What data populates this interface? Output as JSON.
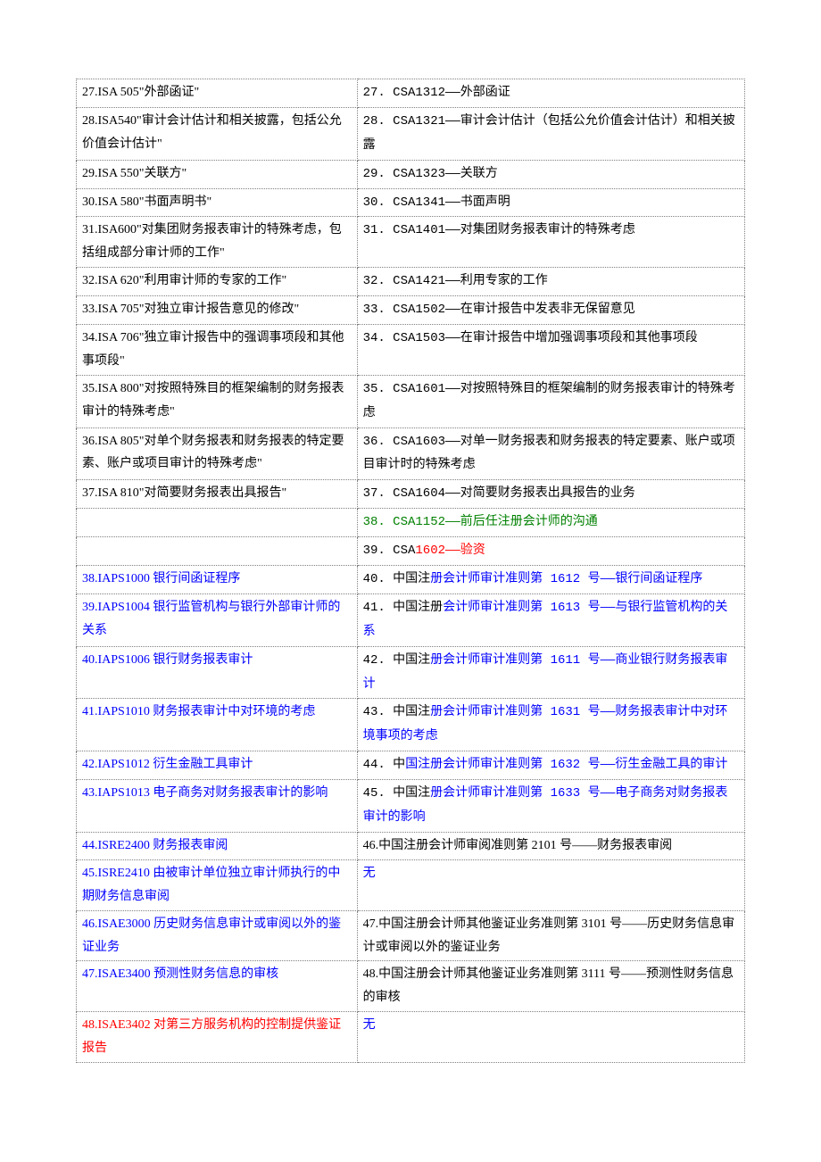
{
  "table": {
    "rows": [
      {
        "left": [
          {
            "t": "27.ISA 505\"外部函证\""
          }
        ],
        "right": [
          {
            "t": "27. CSA1312——外部函证",
            "cls": "tt"
          }
        ]
      },
      {
        "left": [
          {
            "t": "28.ISA540\"审计会计估计和相关披露，包括公允价值会计估计\""
          }
        ],
        "right": [
          {
            "t": "28. CSA1321——审计会计估计（包括公允价值会计估计）和相关披露",
            "cls": "tt"
          }
        ]
      },
      {
        "left": [
          {
            "t": "29.ISA 550\"关联方\""
          }
        ],
        "right": [
          {
            "t": "29. CSA1323——关联方",
            "cls": "tt"
          }
        ]
      },
      {
        "left": [
          {
            "t": "30.ISA 580\"书面声明书\""
          }
        ],
        "right": [
          {
            "t": "30. CSA1341——书面声明",
            "cls": "tt"
          }
        ]
      },
      {
        "left": [
          {
            "t": "31.ISA600\"对集团财务报表审计的特殊考虑，包括组成部分审计师的工作\""
          }
        ],
        "right": [
          {
            "t": "31. CSA1401——对集团财务报表审计的特殊考虑",
            "cls": "tt"
          }
        ]
      },
      {
        "left": [
          {
            "t": "32.ISA 620\"利用审计师的专家的工作\""
          }
        ],
        "right": [
          {
            "t": "32. CSA1421——利用专家的工作",
            "cls": "tt"
          }
        ]
      },
      {
        "left": [
          {
            "t": "33.ISA 705\"对独立审计报告意见的修改\""
          }
        ],
        "right": [
          {
            "t": "33. CSA1502——在审计报告中发表非无保留意见",
            "cls": "tt"
          }
        ]
      },
      {
        "left": [
          {
            "t": "34.ISA 706\"独立审计报告中的强调事项段和其他事项段\""
          }
        ],
        "right": [
          {
            "t": "34. CSA1503——在审计报告中增加强调事项段和其他事项段",
            "cls": "tt"
          }
        ]
      },
      {
        "left": [
          {
            "t": "35.ISA 800\"对按照特殊目的框架编制的财务报表审计的特殊考虑\""
          }
        ],
        "right": [
          {
            "t": "35. CSA1601——对按照特殊目的框架编制的财务报表审计的特殊考虑",
            "cls": "tt"
          }
        ]
      },
      {
        "left": [
          {
            "t": "36.ISA 805\"对单个财务报表和财务报表的特定要素、账户或项目审计的特殊考虑\""
          }
        ],
        "right": [
          {
            "t": "36. CSA1603——对单一财务报表和财务报表的特定要素、账户或项目审计时的特殊考虑",
            "cls": "tt"
          }
        ]
      },
      {
        "left": [
          {
            "t": "37.ISA 810\"对简要财务报表出具报告\""
          }
        ],
        "right": [
          {
            "t": "37. CSA1604——对简要财务报表出具报告的业务",
            "cls": "tt"
          }
        ]
      },
      {
        "left": [],
        "right": [
          {
            "t": "38. CSA1152——前后任注册会计师的沟通",
            "cls": "tt green"
          }
        ]
      },
      {
        "left": [],
        "right": [
          {
            "t": "39. CSA",
            "cls": "tt"
          },
          {
            "t": "1602——验资",
            "cls": "tt red"
          }
        ]
      },
      {
        "left": [
          {
            "t": "38.IAPS1000  银行间函证程序",
            "cls": "blue"
          }
        ],
        "right": [
          {
            "t": "40. 中国注",
            "cls": "tt"
          },
          {
            "t": "册会计师审计准则第 1612 号——银行间函证程序",
            "cls": "tt blue"
          }
        ]
      },
      {
        "left": [
          {
            "t": "39.IAPS1004  银行监管机构与银行外部审计师的关系",
            "cls": "blue"
          }
        ],
        "right": [
          {
            "t": "41. 中国注册",
            "cls": "tt"
          },
          {
            "t": "会计师审计准则第 1613 号——与银行监管机构的关系",
            "cls": "tt blue"
          }
        ]
      },
      {
        "left": [
          {
            "t": "40.IAPS1006  银行财务报表审计",
            "cls": "blue"
          }
        ],
        "right": [
          {
            "t": "42. 中国注",
            "cls": "tt"
          },
          {
            "t": "册会计师审计准则第 1611 号——商业银行财务报表审计",
            "cls": "tt blue"
          }
        ]
      },
      {
        "left": [
          {
            "t": "41.IAPS1010  财务报表审计中对环境的考虑",
            "cls": "blue"
          }
        ],
        "right": [
          {
            "t": "43. 中国注",
            "cls": "tt"
          },
          {
            "t": "册会计师审计准则第 1631 号——财务报表审计中对环境事项的考虑",
            "cls": "tt blue"
          }
        ]
      },
      {
        "left": [
          {
            "t": "42.IAPS1012  衍生金融工具审计",
            "cls": "blue"
          }
        ],
        "right": [
          {
            "t": "44. 中",
            "cls": "tt"
          },
          {
            "t": "国注册会计师审计准则第 1632 号——衍生金融工具的审计",
            "cls": "tt blue"
          }
        ]
      },
      {
        "left": [
          {
            "t": "43.IAPS1013  电子商务对财务报表审计的影响",
            "cls": "blue"
          }
        ],
        "right": [
          {
            "t": "45. 中国注",
            "cls": "tt"
          },
          {
            "t": "册会计师审计准则第 1633 号——电子商务对财务报表审计的影响",
            "cls": "tt blue"
          }
        ]
      },
      {
        "left": [
          {
            "t": "44.ISRE2400  财务报表审阅",
            "cls": "blue"
          }
        ],
        "right": [
          {
            "t": "46.中国注册会计师审阅准则第 2101 号——财务报表审阅",
            "cls": "cn"
          }
        ]
      },
      {
        "left": [
          {
            "t": "45.ISRE2410  由被审计单位独立审计师执行的中期财务信息审阅",
            "cls": "blue"
          }
        ],
        "right": [
          {
            "t": "无",
            "cls": "cn blue"
          }
        ]
      },
      {
        "left": [
          {
            "t": "46.ISAE3000  历史财务信息审计或审阅以外的鉴证业务",
            "cls": "blue"
          }
        ],
        "right": [
          {
            "t": "47.中国注册会计师其他鉴证业务准则第 3101 号——历史财务信息审计或审阅以外的鉴证业务",
            "cls": "cn"
          }
        ]
      },
      {
        "left": [
          {
            "t": "47.ISAE3400  预测性财务信息的审核",
            "cls": "blue"
          }
        ],
        "right": [
          {
            "t": "48.中国注册会计师其他鉴证业务准则第 3111 号——预测性财务信息的审核",
            "cls": "cn"
          }
        ]
      },
      {
        "left": [
          {
            "t": "48.ISAE3402  对第三方服务机构的控制提供鉴证报告",
            "cls": "red"
          }
        ],
        "right": [
          {
            "t": "无",
            "cls": "cn blue"
          }
        ]
      }
    ]
  }
}
